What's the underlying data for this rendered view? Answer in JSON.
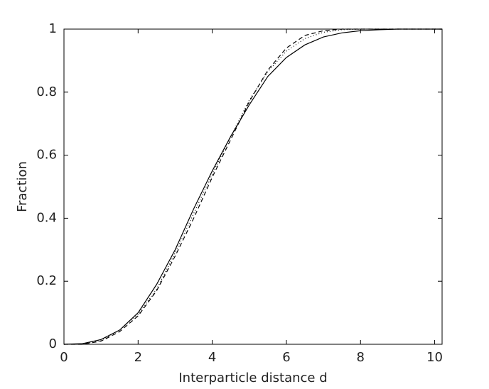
{
  "chart_data": {
    "type": "line",
    "x_label": "Interparticle distance d",
    "y_label": "Fraction",
    "x": [
      0,
      0.5,
      1,
      1.5,
      2,
      2.5,
      3,
      3.5,
      4,
      4.5,
      5,
      5.5,
      6,
      6.5,
      7,
      7.5,
      8,
      8.5,
      9,
      9.5,
      10,
      10.2
    ],
    "series": [
      {
        "color": "#000000",
        "dash": "none",
        "values": [
          0,
          0.002,
          0.015,
          0.045,
          0.1,
          0.19,
          0.3,
          0.43,
          0.55,
          0.66,
          0.76,
          0.85,
          0.91,
          0.95,
          0.975,
          0.988,
          0.995,
          0.998,
          1,
          1,
          1,
          1
        ]
      },
      {
        "color": "#000000",
        "dash": "6 4",
        "values": [
          0,
          0,
          0.01,
          0.04,
          0.09,
          0.17,
          0.28,
          0.4,
          0.53,
          0.65,
          0.77,
          0.87,
          0.94,
          0.98,
          0.995,
          1,
          1,
          1,
          1,
          1,
          1,
          1
        ]
      },
      {
        "color": "#000000",
        "dash": "1 3",
        "values": [
          0,
          0.001,
          0.012,
          0.045,
          0.095,
          0.175,
          0.29,
          0.415,
          0.54,
          0.66,
          0.775,
          0.865,
          0.93,
          0.97,
          0.99,
          0.998,
          1,
          1,
          1,
          1,
          1,
          1
        ]
      }
    ],
    "xlim": [
      0,
      10.2
    ],
    "ylim": [
      0,
      1
    ],
    "xticks": [
      0,
      2,
      4,
      6,
      8,
      10
    ],
    "yticks": [
      0,
      0.2,
      0.4,
      0.6,
      0.8,
      1
    ]
  }
}
